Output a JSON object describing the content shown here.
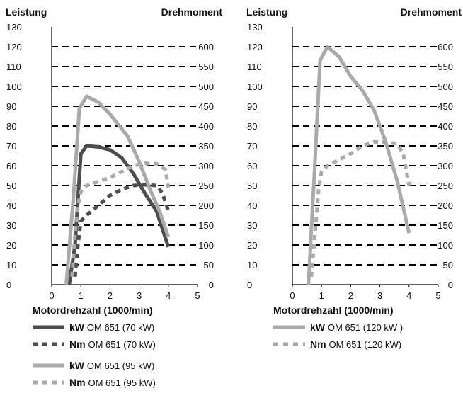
{
  "chart_data": [
    {
      "type": "line",
      "left_axis_label": "Leistung",
      "right_axis_label": "Drehmoment",
      "xlabel": "Motordrehzahl (1000/min)",
      "xlim": [
        0,
        5
      ],
      "ylim_left": [
        0,
        130
      ],
      "ylim_right": [
        0,
        650
      ],
      "x_ticks": [
        "0",
        "1",
        "2",
        "3",
        "4",
        "5"
      ],
      "y_left_ticks": [
        "0",
        "10",
        "20",
        "30",
        "40",
        "50",
        "60",
        "70",
        "80",
        "90",
        "100",
        "110",
        "120",
        "130"
      ],
      "y_right_ticks": [
        "0",
        "50",
        "100",
        "150",
        "200",
        "250",
        "300",
        "350",
        "400",
        "450",
        "500",
        "550",
        "600"
      ],
      "grid": "horizontal",
      "series": [
        {
          "name": "OM 651 (70 kW)",
          "unit": "kW",
          "axis": "left",
          "style": "solid",
          "color": "#4d4d4d",
          "x": [
            0.6,
            0.8,
            1.0,
            1.2,
            1.6,
            2.0,
            2.4,
            2.8,
            3.2,
            3.6,
            4.0
          ],
          "values": [
            0,
            20,
            66,
            70,
            69.5,
            68,
            64,
            56,
            46,
            37,
            19
          ]
        },
        {
          "name": "OM 651 (70 kW)",
          "unit": "Nm",
          "axis": "right",
          "style": "dashed",
          "color": "#4d4d4d",
          "x": [
            0.8,
            0.9,
            1.0,
            1.2,
            1.6,
            2.0,
            2.4,
            2.8,
            3.2,
            3.6,
            3.8,
            4.0
          ],
          "values": [
            20,
            100,
            160,
            175,
            200,
            225,
            240,
            250,
            252,
            250,
            230,
            185
          ]
        },
        {
          "name": "OM 651 (95 kW)",
          "unit": "kW",
          "axis": "left",
          "style": "solid",
          "color": "#aaaaaa",
          "x": [
            0.5,
            0.75,
            0.95,
            1.2,
            1.6,
            2.0,
            2.6,
            3.0,
            3.4,
            3.7,
            4.0
          ],
          "values": [
            0,
            45,
            89,
            95,
            92,
            86,
            75,
            62,
            47,
            37,
            24
          ]
        },
        {
          "name": "OM 651 (95 kW)",
          "unit": "Nm",
          "axis": "right",
          "style": "dashed",
          "color": "#aaaaaa",
          "x": [
            0.7,
            0.8,
            0.9,
            1.0,
            1.2,
            1.6,
            2.0,
            2.4,
            2.8,
            3.2,
            3.6,
            3.9,
            4.0
          ],
          "values": [
            20,
            130,
            200,
            235,
            250,
            260,
            270,
            285,
            300,
            306,
            305,
            290,
            245
          ]
        }
      ],
      "legend": [
        {
          "unit": "kW",
          "label": "OM 651 (70 kW)"
        },
        {
          "unit": "Nm",
          "label": "OM 651 (70 kW)"
        },
        {
          "unit": "kW",
          "label": "OM 651 (95 kW)"
        },
        {
          "unit": "Nm",
          "label": "OM 651 (95 kW)"
        }
      ]
    },
    {
      "type": "line",
      "left_axis_label": "Leistung",
      "right_axis_label": "Drehmoment",
      "xlabel": "Motordrehzahl (1000/min)",
      "xlim": [
        0,
        5
      ],
      "ylim_left": [
        0,
        130
      ],
      "ylim_right": [
        0,
        650
      ],
      "x_ticks": [
        "0",
        "1",
        "2",
        "3",
        "4",
        "5"
      ],
      "y_left_ticks": [
        "0",
        "10",
        "20",
        "30",
        "40",
        "50",
        "60",
        "70",
        "80",
        "90",
        "100",
        "110",
        "120",
        "130"
      ],
      "y_right_ticks": [
        "0",
        "50",
        "100",
        "150",
        "200",
        "250",
        "300",
        "350",
        "400",
        "450",
        "500",
        "550",
        "600"
      ],
      "grid": "horizontal",
      "series": [
        {
          "name": "OM 651 (120 kW )",
          "unit": "kW",
          "axis": "left",
          "style": "solid",
          "color": "#aaaaaa",
          "x": [
            0.55,
            0.75,
            0.95,
            1.2,
            1.6,
            2.0,
            2.4,
            2.8,
            3.2,
            3.6,
            4.0
          ],
          "values": [
            0,
            55,
            113,
            120,
            115,
            105,
            98,
            88,
            72,
            52,
            26
          ]
        },
        {
          "name": "OM 651 (120 kW)",
          "unit": "Nm",
          "axis": "right",
          "style": "dashed",
          "color": "#aaaaaa",
          "x": [
            0.65,
            0.8,
            0.9,
            1.0,
            1.2,
            1.6,
            2.0,
            2.4,
            2.8,
            3.2,
            3.6,
            3.8,
            4.0
          ],
          "values": [
            20,
            150,
            240,
            285,
            300,
            315,
            330,
            350,
            360,
            360,
            355,
            330,
            250
          ]
        }
      ],
      "legend": [
        {
          "unit": "kW",
          "label": "OM 651 (120 kW )"
        },
        {
          "unit": "Nm",
          "label": "OM 651 (120 kW)"
        }
      ]
    }
  ]
}
